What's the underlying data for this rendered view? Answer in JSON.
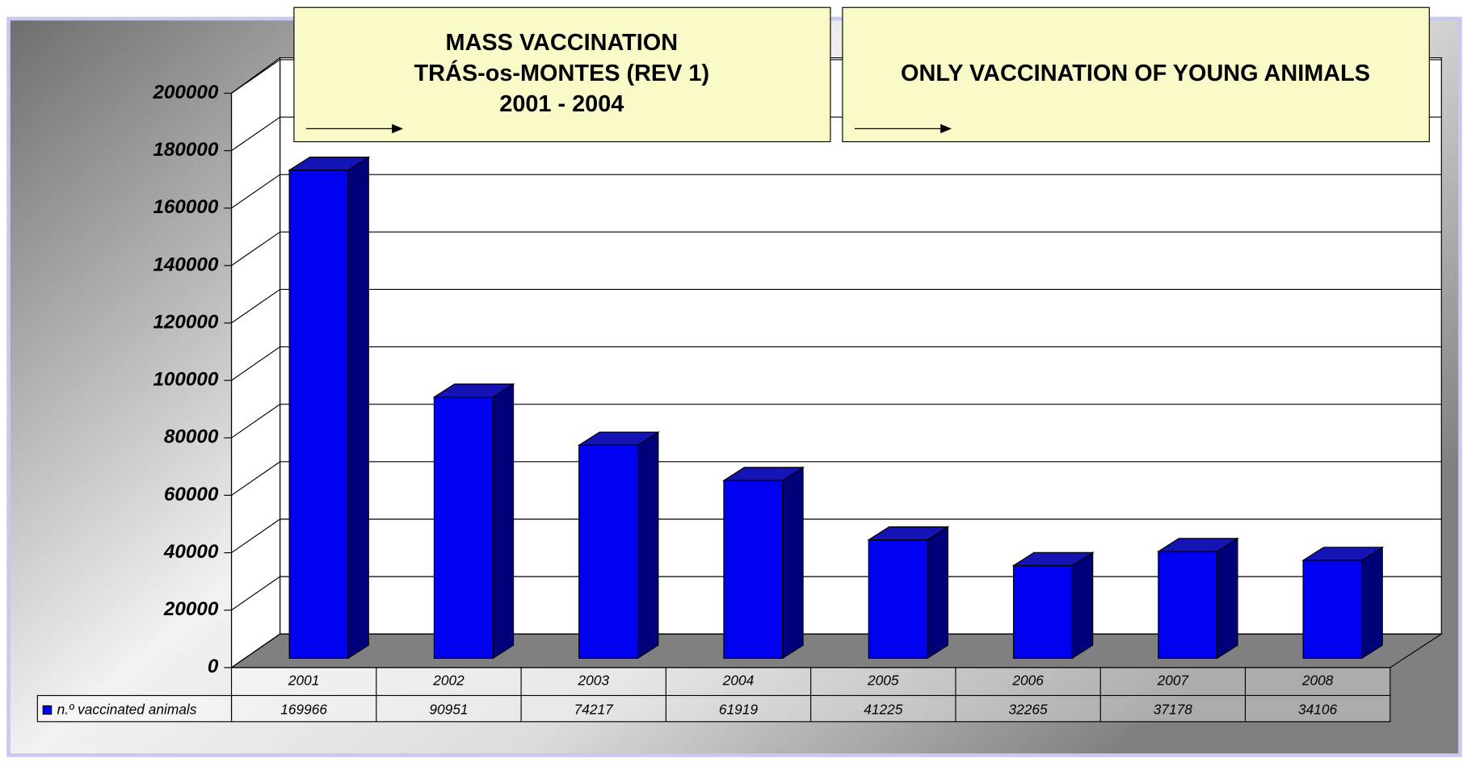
{
  "chart_data": {
    "type": "bar3d",
    "categories": [
      "2001",
      "2002",
      "2003",
      "2004",
      "2005",
      "2006",
      "2007",
      "2008"
    ],
    "series": [
      {
        "name": "n.º vaccinated animals",
        "color": "#0000ff",
        "values": [
          169966,
          90951,
          74217,
          61919,
          41225,
          32265,
          37178,
          34106
        ]
      }
    ],
    "ylim": [
      0,
      200000
    ],
    "yticks": [
      0,
      20000,
      40000,
      60000,
      80000,
      100000,
      120000,
      140000,
      160000,
      180000,
      200000
    ],
    "grid": true,
    "annotations": [
      {
        "lines": [
          "MASS VACCINATION",
          "TRÁS-os-MONTES (REV 1)",
          "2001 - 2004"
        ]
      },
      {
        "lines": [
          "ONLY VACCINATION OF YOUNG ANIMALS"
        ]
      }
    ]
  }
}
